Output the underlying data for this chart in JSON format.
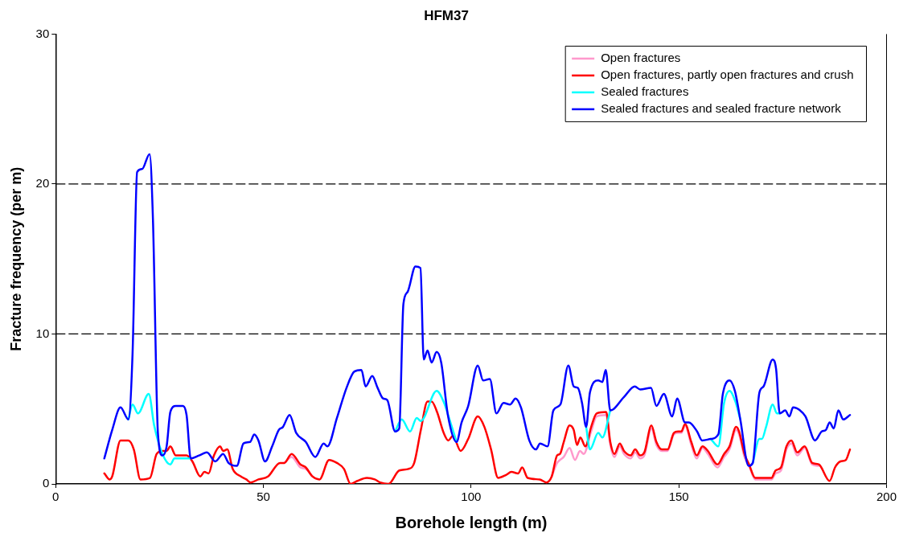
{
  "chart_data": {
    "type": "line",
    "title": "HFM37",
    "xlabel": "Borehole length (m)",
    "ylabel": "Fracture frequency (per m)",
    "xlim": [
      0,
      200
    ],
    "xticks": [
      0,
      50,
      100,
      150,
      200
    ],
    "ylim": [
      0,
      30
    ],
    "yticks": [
      0,
      10,
      20,
      30
    ],
    "grid": false,
    "legend": "top right",
    "marker": "none",
    "line_style": "solid",
    "ref_lines": [
      {
        "axis": "y",
        "value": 10,
        "color": "#000000",
        "line_style": "dashed"
      },
      {
        "axis": "y",
        "value": 20,
        "color": "#000000",
        "line_style": "dashed"
      }
    ],
    "series": [
      {
        "name": "Open fractures",
        "color": "#ff99cc",
        "x": [
          55.0,
          56.8,
          58.9,
          60.2,
          61.8,
          100,
          119.4,
          120.7,
          121.4,
          122.3,
          123.7,
          125.0,
          126.2,
          127.1,
          128.9,
          130.2,
          132.5,
          133.5,
          134.5,
          135.8,
          136.8,
          138.4,
          139.5,
          140.7,
          141.7,
          143.4,
          144.6,
          145.9,
          147.3,
          148.8,
          149.8,
          150.6,
          151.5,
          153.0,
          154.3,
          155.7,
          157.0,
          159.3,
          160.9,
          162.2,
          163.8,
          164.5,
          165.8,
          166.9,
          168.4,
          172.3,
          173.3,
          174.6,
          175.9,
          177.1,
          178.5,
          180.3,
          182.1,
          183.7
        ],
        "values": [
          1.4,
          1.8,
          1.1,
          1.0,
          0.5,
          null,
          0.5,
          1.4,
          1.6,
          1.8,
          2.4,
          1.6,
          2.2,
          2.0,
          3.5,
          4.5,
          4.6,
          2.6,
          1.8,
          2.5,
          2.0,
          1.7,
          2.1,
          1.7,
          1.9,
          3.7,
          2.6,
          2.2,
          2.2,
          3.3,
          3.4,
          3.4,
          3.9,
          2.6,
          1.7,
          2.4,
          2.0,
          1.1,
          1.8,
          2.3,
          3.6,
          3.3,
          1.8,
          1.2,
          0.3,
          0.3,
          0.7,
          0.9,
          2.3,
          2.7,
          1.9,
          2.4,
          1.3,
          1.2
        ]
      },
      {
        "name": "Open fractures, partly open fractures and crush",
        "color": "#ff0000",
        "x": [
          11.7,
          13.0,
          13.6,
          15.6,
          17.5,
          18.8,
          20.4,
          22.7,
          24.3,
          25.7,
          26.7,
          27.6,
          28.9,
          31.5,
          32.9,
          34.8,
          35.8,
          36.8,
          38.1,
          39.6,
          40.3,
          41.3,
          42.6,
          44.6,
          45.9,
          46.9,
          48.8,
          51.1,
          54.0,
          55.0,
          56.8,
          58.9,
          60.2,
          61.8,
          63.5,
          65.8,
          67.7,
          69.4,
          71.0,
          72.6,
          74.9,
          76.8,
          78.1,
          80.1,
          82.7,
          84.9,
          86.3,
          87.9,
          89.5,
          90.5,
          91.8,
          93.4,
          94.5,
          95.6,
          97.5,
          99.3,
          101.6,
          103.2,
          104.8,
          106.5,
          108.4,
          109.7,
          111.3,
          112.3,
          113.6,
          116.5,
          118.1,
          119.4,
          120.7,
          121.4,
          122.3,
          123.7,
          124.7,
          125.5,
          126.3,
          127.5,
          128.9,
          130.2,
          132.5,
          133.5,
          134.5,
          135.8,
          136.8,
          138.4,
          139.5,
          140.7,
          141.7,
          143.4,
          144.6,
          145.9,
          147.3,
          148.8,
          149.8,
          150.6,
          151.5,
          153.0,
          154.3,
          155.7,
          157.0,
          159.3,
          160.9,
          162.2,
          163.8,
          164.5,
          165.8,
          166.9,
          168.4,
          172.3,
          173.3,
          174.6,
          175.9,
          177.1,
          178.5,
          180.3,
          182.1,
          183.7,
          186.3,
          187.6,
          188.9,
          190.2,
          191.2
        ],
        "values": [
          0.7,
          0.3,
          0.5,
          2.9,
          2.9,
          2.3,
          0.3,
          0.4,
          2.0,
          2.2,
          2.2,
          2.5,
          1.9,
          1.9,
          1.5,
          0.5,
          0.8,
          0.7,
          1.9,
          2.5,
          2.2,
          2.3,
          1.0,
          0.5,
          0.3,
          0.1,
          0.3,
          0.5,
          1.4,
          1.4,
          2.0,
          1.3,
          1.1,
          0.5,
          0.3,
          1.6,
          1.4,
          1.0,
          0,
          0.2,
          0.4,
          0.3,
          0.1,
          0,
          0.9,
          1.0,
          1.4,
          3.6,
          5.5,
          5.5,
          4.8,
          3.4,
          2.9,
          3.2,
          2.2,
          3.0,
          4.5,
          3.8,
          2.3,
          0.4,
          0.6,
          0.8,
          0.7,
          1.1,
          0.4,
          0.3,
          0.1,
          0.5,
          1.9,
          2.0,
          2.8,
          3.9,
          3.6,
          2.6,
          3.1,
          2.5,
          3.8,
          4.7,
          4.8,
          2.8,
          2.0,
          2.7,
          2.2,
          1.9,
          2.3,
          1.9,
          2.1,
          3.9,
          2.8,
          2.3,
          2.3,
          3.4,
          3.5,
          3.5,
          4.0,
          2.8,
          1.9,
          2.5,
          2.2,
          1.3,
          2.0,
          2.5,
          3.8,
          3.5,
          2.0,
          1.3,
          0.4,
          0.4,
          0.9,
          1.1,
          2.5,
          2.9,
          2.1,
          2.5,
          1.4,
          1.3,
          0.2,
          1.1,
          1.5,
          1.6,
          2.3
        ]
      },
      {
        "name": "Sealed fractures",
        "color": "#00ffff",
        "x": [
          17.5,
          18.5,
          19.8,
          22.4,
          23.7,
          25.7,
          27.6,
          28.6,
          32.5,
          50,
          81.7,
          83.3,
          85.3,
          86.9,
          87.9,
          91.7,
          93.5,
          94.8,
          96.5,
          110,
          127.7,
          128.6,
          130.6,
          131.6,
          133.5,
          150,
          157.7,
          159.5,
          160.9,
          162.2,
          163.6,
          164.8,
          166,
          167.8,
          169.4,
          170.0,
          171.0,
          172.6,
          173.6,
          174.3
        ],
        "values": [
          4.3,
          5.3,
          4.7,
          6.0,
          3.9,
          2.0,
          1.3,
          1.7,
          1.7,
          null,
          3.5,
          4.3,
          3.5,
          4.4,
          4.2,
          6.2,
          5.4,
          4.3,
          2.8,
          null,
          3.8,
          2.3,
          3.4,
          3.1,
          4.9,
          null,
          3.0,
          2.5,
          5.4,
          6.2,
          5.5,
          4.3,
          null,
          1.4,
          3.0,
          3.0,
          3.8,
          5.3,
          4.7,
          4.7
        ]
      },
      {
        "name": "Sealed fractures and sealed fracture network",
        "color": "#0000ff",
        "x": [
          11.7,
          13.6,
          15.6,
          17.5,
          18.5,
          19.6,
          20.8,
          22.6,
          23.4,
          24.6,
          25.7,
          26.7,
          27.6,
          28.9,
          30.6,
          31.5,
          32.5,
          34.5,
          36.4,
          38.4,
          40.3,
          41.6,
          43.6,
          45.2,
          46.8,
          47.8,
          48.8,
          50.4,
          52.1,
          53.7,
          54.7,
          56.3,
          57.9,
          60.2,
          62.5,
          64.5,
          65.4,
          67.7,
          70.0,
          71.9,
          73.6,
          74.6,
          76.2,
          77.5,
          78.8,
          79.8,
          81.7,
          82.7,
          83.7,
          84.7,
          86.6,
          87.8,
          88.6,
          89.5,
          90.5,
          91.7,
          92.8,
          94.4,
          96.5,
          97.7,
          99.3,
          101.6,
          102.9,
          104.5,
          106.1,
          107.8,
          109.4,
          110.7,
          112.0,
          114.0,
          115.6,
          116.6,
          118.4,
          119.8,
          121.5,
          123.4,
          124.7,
          125.7,
          126.7,
          127.7,
          128.6,
          130.6,
          131.6,
          132.4,
          133.5,
          136.8,
          139.4,
          140.7,
          143.3,
          144.6,
          146.4,
          148.4,
          149.6,
          151.5,
          152.4,
          154.4,
          155.6,
          157.7,
          159.5,
          160.6,
          162.2,
          163.5,
          164.8,
          166.8,
          167.8,
          169.4,
          170.4,
          172.6,
          173.4,
          174.3,
          175.6,
          176.6,
          177.5,
          179.2,
          180.5,
          182.8,
          184.4,
          185.4,
          186.3,
          187.3,
          188.4,
          189.6,
          191.2
        ],
        "values": [
          1.7,
          3.6,
          5.1,
          4.3,
          8.7,
          20.8,
          21.0,
          22.0,
          17.7,
          3.4,
          1.9,
          2.5,
          4.8,
          5.2,
          5.2,
          4.6,
          1.7,
          1.9,
          2.1,
          1.5,
          2.0,
          1.4,
          1.2,
          2.7,
          2.8,
          3.3,
          2.9,
          1.5,
          2.5,
          3.6,
          3.8,
          4.6,
          3.4,
          2.8,
          1.8,
          2.7,
          2.5,
          4.4,
          6.4,
          7.5,
          7.6,
          6.5,
          7.2,
          6.4,
          5.7,
          5.6,
          3.5,
          3.7,
          12.0,
          12.8,
          14.5,
          14.4,
          8.3,
          8.9,
          8.1,
          8.8,
          8.1,
          4.6,
          2.8,
          4.1,
          5.2,
          7.9,
          6.9,
          7.0,
          4.7,
          5.4,
          5.3,
          5.7,
          5.1,
          2.9,
          2.3,
          2.7,
          2.5,
          4.9,
          5.3,
          7.9,
          6.5,
          6.4,
          5.4,
          3.8,
          6.1,
          6.9,
          6.8,
          7.6,
          4.9,
          5.8,
          6.5,
          6.3,
          6.4,
          5.2,
          6.0,
          4.5,
          5.7,
          4.1,
          4.1,
          3.5,
          2.9,
          3.0,
          3.3,
          6.0,
          6.9,
          6.2,
          4.3,
          1.2,
          1.4,
          6.1,
          6.5,
          8.3,
          7.7,
          4.7,
          4.9,
          4.5,
          5.1,
          4.9,
          4.5,
          2.9,
          3.5,
          3.6,
          4.1,
          3.7,
          4.9,
          4.3,
          4.6
        ]
      }
    ]
  }
}
